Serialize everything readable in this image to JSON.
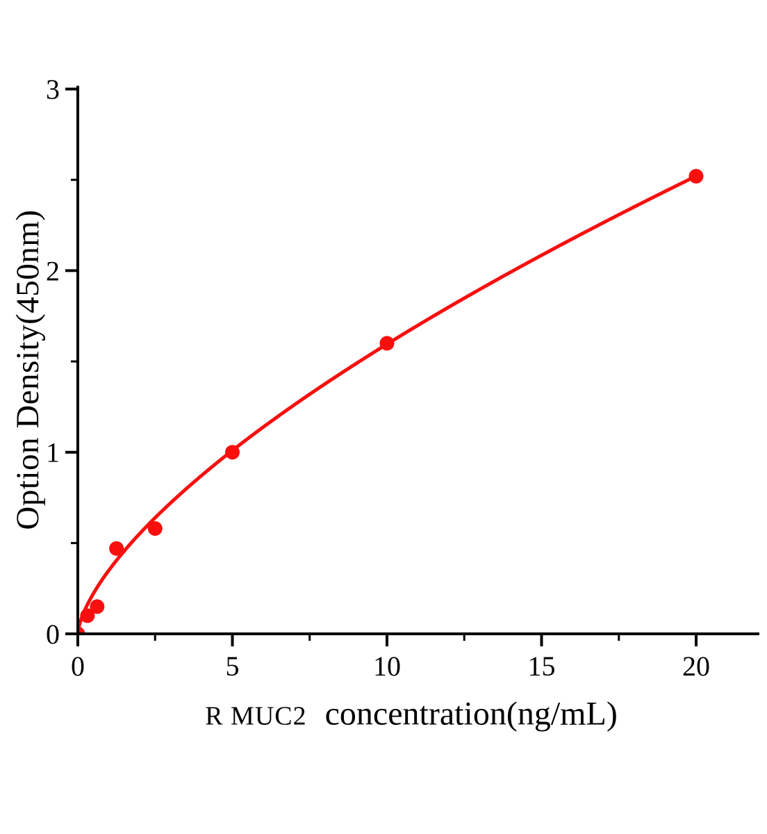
{
  "figure": {
    "background_color": "#ffffff",
    "axis_color": "#000000",
    "accent_red": "#f80f0e"
  },
  "chart_data": {
    "type": "scatter",
    "title": "",
    "xlabel_prefix": "R MUC2",
    "xlabel_main": "concentration(ng/mL)",
    "ylabel": "Option Density(450nm)",
    "x": [
      0,
      0.312,
      0.625,
      1.25,
      2.5,
      5,
      10,
      20
    ],
    "y": [
      0.0,
      0.1,
      0.15,
      0.47,
      0.58,
      1.0,
      1.6,
      2.52
    ],
    "marker_color": "#f80f0e",
    "line_color": "#f80f0e",
    "marker_radius_px": 10.5,
    "fit": {
      "type": "power",
      "a": 0.349,
      "b": 0.66,
      "x_min": 0,
      "x_max": 20
    },
    "xlim": [
      0,
      22
    ],
    "ylim": [
      0,
      3.01
    ],
    "x_major_ticks": [
      0,
      5,
      10,
      15,
      20
    ],
    "x_minor_ticks": [
      2.5,
      7.5,
      12.5,
      17.5
    ],
    "y_major_ticks": [
      0,
      1,
      2,
      3
    ],
    "y_minor_ticks": [
      0.5,
      1.5,
      2.5
    ],
    "grid": false,
    "legend": "none"
  }
}
